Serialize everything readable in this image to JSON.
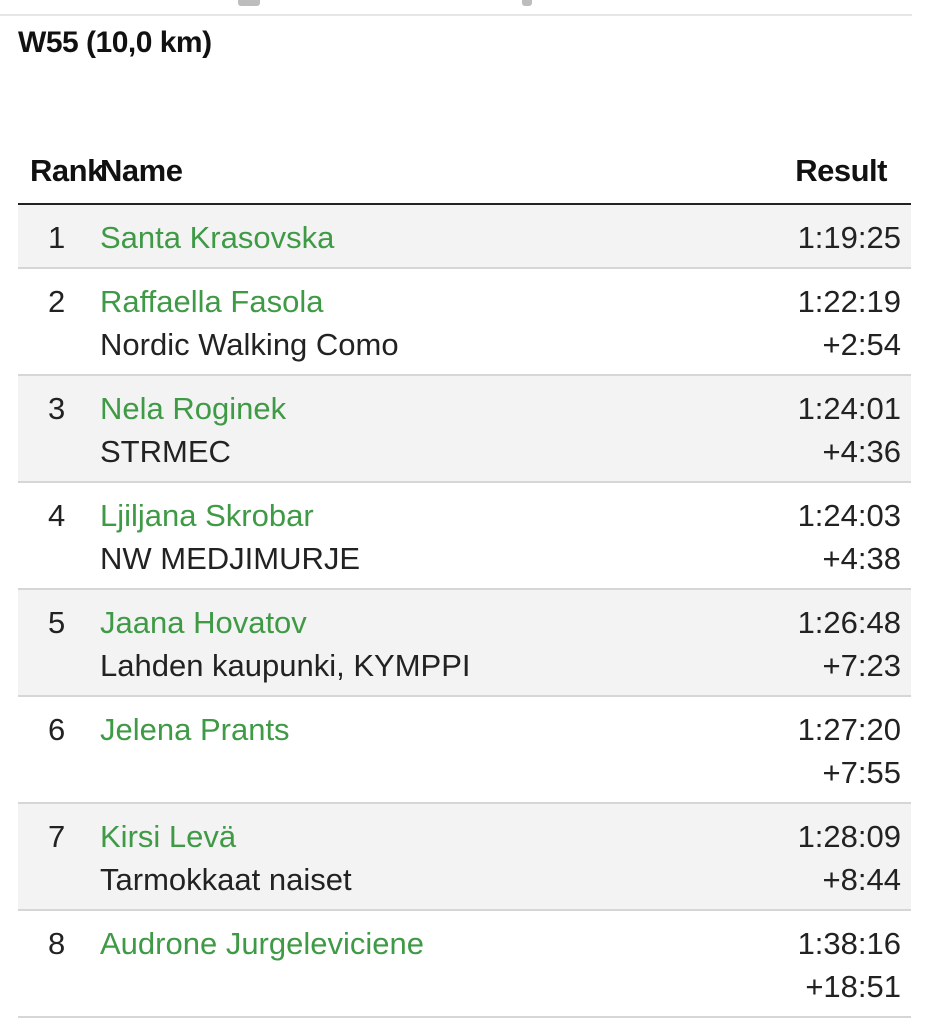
{
  "class_title": "W55 (10,0 km)",
  "table": {
    "headers": {
      "rank": "Rank",
      "name": "Name",
      "result": "Result"
    },
    "rows": [
      {
        "rank": "1",
        "name": "Santa Krasovska",
        "club": "",
        "time": "1:19:25",
        "diff": ""
      },
      {
        "rank": "2",
        "name": "Raffaella Fasola",
        "club": "Nordic Walking Como",
        "time": "1:22:19",
        "diff": "+2:54"
      },
      {
        "rank": "3",
        "name": "Nela Roginek",
        "club": "STRMEC",
        "time": "1:24:01",
        "diff": "+4:36"
      },
      {
        "rank": "4",
        "name": "Ljiljana Skrobar",
        "club": "NW MEDJIMURJE",
        "time": "1:24:03",
        "diff": "+4:38"
      },
      {
        "rank": "5",
        "name": "Jaana Hovatov",
        "club": "Lahden kaupunki, KYMPPI",
        "time": "1:26:48",
        "diff": "+7:23"
      },
      {
        "rank": "6",
        "name": "Jelena Prants",
        "club": "",
        "time": "1:27:20",
        "diff": "+7:55"
      },
      {
        "rank": "7",
        "name": "Kirsi Levä",
        "club": "Tarmokkaat naiset",
        "time": "1:28:09",
        "diff": "+8:44"
      },
      {
        "rank": "8",
        "name": "Audrone Jurgeleviciene",
        "club": "",
        "time": "1:38:16",
        "diff": "+18:51"
      }
    ]
  },
  "colors": {
    "athlete_link": "#3f9a46",
    "row_alt_bg": "#f3f3f3",
    "header_rule": "#222222"
  }
}
